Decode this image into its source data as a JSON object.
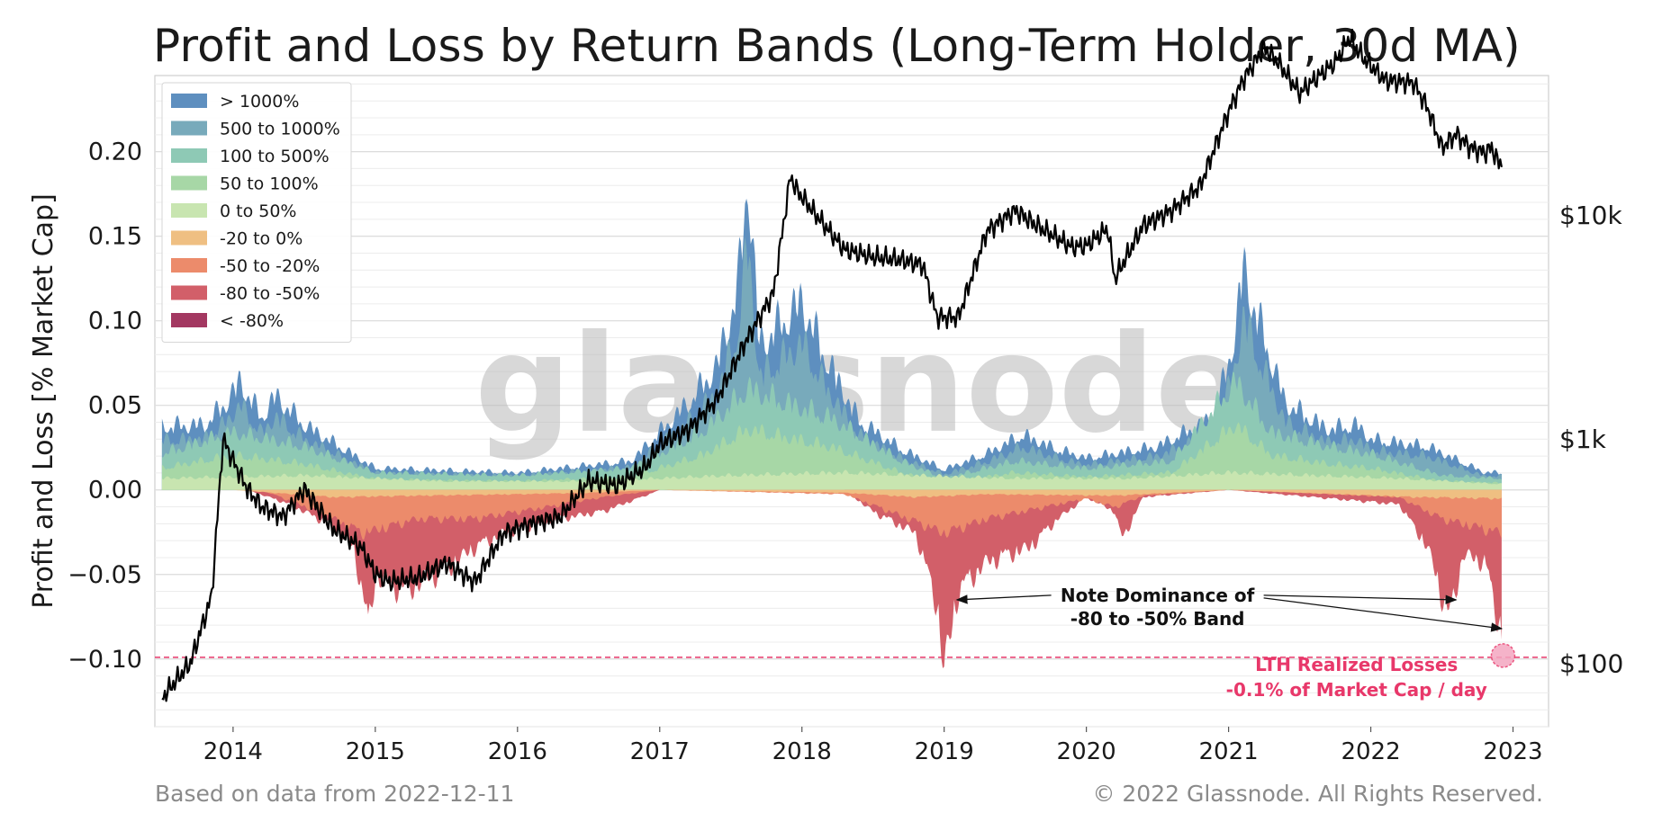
{
  "chart_data": {
    "type": "area",
    "title": "Profit and Loss by Return Bands (Long-Term Holder, 30d MA)",
    "ylabel": "Profit and Loss [% Market Cap]",
    "xlabel": "",
    "xlim": [
      2013.45,
      2023.25
    ],
    "ylim": [
      -0.14,
      0.245
    ],
    "x_ticks": [
      2014,
      2015,
      2016,
      2017,
      2018,
      2019,
      2020,
      2021,
      2022,
      2023
    ],
    "x_tick_labels": [
      "2014",
      "2015",
      "2016",
      "2017",
      "2018",
      "2019",
      "2020",
      "2021",
      "2022",
      "2023"
    ],
    "y_ticks": [
      -0.1,
      -0.05,
      0.0,
      0.05,
      0.1,
      0.15,
      0.2
    ],
    "y_tick_labels": [
      "−0.10",
      "−0.05",
      "0.00",
      "0.05",
      "0.10",
      "0.15",
      "0.20"
    ],
    "y2_ticks": [
      100,
      1000,
      10000
    ],
    "y2_tick_labels": [
      "$100",
      "$1k",
      "$10k"
    ],
    "y2_scale": "log",
    "y2lim": [
      52,
      42000
    ],
    "grid": true,
    "legend_position": "top-left",
    "legend": [
      {
        "label": "> 1000%",
        "color": "#5e8fbf"
      },
      {
        "label": "500 to 1000%",
        "color": "#78aabb"
      },
      {
        "label": "100 to 500%",
        "color": "#8ec9b5"
      },
      {
        "label": "50 to 100%",
        "color": "#a7d7a6"
      },
      {
        "label": "0 to 50%",
        "color": "#c8e5b0"
      },
      {
        "label": "-20 to 0%",
        "color": "#efbf82"
      },
      {
        "label": "-50 to -20%",
        "color": "#ec8b6b"
      },
      {
        "label": "-80 to -50%",
        "color": "#d25f69"
      },
      {
        "label": "< -80%",
        "color": "#a33861"
      }
    ],
    "series": [
      {
        "name": "> 1000%",
        "x": [
          2013.5,
          2013.8,
          2013.95,
          2014.05,
          2014.2,
          2014.3,
          2014.5,
          2015.0,
          2016.0,
          2016.8,
          2017.2,
          2017.4,
          2017.55,
          2017.62,
          2017.7,
          2017.9,
          2018.0,
          2018.15,
          2018.4,
          2018.7,
          2019.0,
          2019.3,
          2019.55,
          2019.8,
          2020.0,
          2020.5,
          2020.9,
          2021.05,
          2021.1,
          2021.2,
          2021.4,
          2021.7,
          2021.9,
          2022.0,
          2022.4,
          2022.8,
          2022.92
        ],
        "y": [
          0.044,
          0.045,
          0.06,
          0.075,
          0.05,
          0.065,
          0.045,
          0.015,
          0.012,
          0.02,
          0.06,
          0.085,
          0.14,
          0.22,
          0.1,
          0.12,
          0.13,
          0.095,
          0.048,
          0.028,
          0.014,
          0.025,
          0.038,
          0.028,
          0.022,
          0.03,
          0.05,
          0.11,
          0.155,
          0.12,
          0.06,
          0.042,
          0.045,
          0.035,
          0.03,
          0.012,
          0.012
        ]
      },
      {
        "name": "100 to 500%",
        "x": [
          2013.5,
          2014.0,
          2014.5,
          2015.0,
          2016.0,
          2016.8,
          2017.3,
          2017.62,
          2017.9,
          2018.2,
          2018.7,
          2019.0,
          2019.5,
          2020.0,
          2020.6,
          2021.05,
          2021.3,
          2021.7,
          2022.0,
          2022.5,
          2022.92
        ],
        "y": [
          0.025,
          0.04,
          0.03,
          0.012,
          0.01,
          0.015,
          0.04,
          0.07,
          0.06,
          0.05,
          0.02,
          0.008,
          0.02,
          0.015,
          0.02,
          0.075,
          0.04,
          0.03,
          0.025,
          0.01,
          0.008
        ]
      },
      {
        "name": "0 to 50%",
        "x": [
          2013.5,
          2014.5,
          2015.5,
          2016.5,
          2017.5,
          2018.3,
          2018.8,
          2019.5,
          2020.3,
          2021.0,
          2021.6,
          2022.2,
          2022.92
        ],
        "y": [
          0.008,
          0.01,
          0.006,
          0.006,
          0.01,
          0.012,
          0.01,
          0.008,
          0.008,
          0.012,
          0.01,
          0.008,
          0.004
        ]
      },
      {
        "name": "-20 to 0%",
        "x": [
          2013.5,
          2014.0,
          2014.7,
          2015.3,
          2016.0,
          2016.5,
          2017.0,
          2018.3,
          2018.8,
          2019.3,
          2020.2,
          2021.0,
          2022.3,
          2022.92
        ],
        "y": [
          0.0,
          0.0,
          -0.005,
          -0.004,
          -0.003,
          -0.002,
          0.0,
          -0.002,
          -0.005,
          -0.003,
          -0.004,
          0.0,
          -0.005,
          -0.006
        ]
      },
      {
        "name": "-50 to -20%",
        "x": [
          2013.5,
          2014.2,
          2014.6,
          2014.92,
          2015.3,
          2015.7,
          2016.2,
          2016.6,
          2017.0,
          2018.3,
          2018.75,
          2019.0,
          2019.3,
          2020.0,
          2020.2,
          2020.4,
          2021.0,
          2022.2,
          2022.5,
          2022.92
        ],
        "y": [
          0.0,
          0.0,
          -0.015,
          -0.03,
          -0.02,
          -0.02,
          -0.012,
          -0.005,
          0.0,
          -0.003,
          -0.02,
          -0.03,
          -0.02,
          -0.006,
          -0.012,
          -0.004,
          0.0,
          -0.005,
          -0.02,
          -0.03
        ]
      },
      {
        "name": "-80 to -50%",
        "x": [
          2013.5,
          2014.1,
          2014.4,
          2014.7,
          2014.85,
          2014.95,
          2015.0,
          2015.2,
          2015.5,
          2015.7,
          2015.9,
          2016.1,
          2016.3,
          2016.6,
          2016.9,
          2017.0,
          2018.3,
          2018.5,
          2018.6,
          2018.8,
          2018.95,
          2019.0,
          2019.1,
          2019.3,
          2019.6,
          2019.8,
          2020.0,
          2020.2,
          2020.25,
          2020.4,
          2021.0,
          2022.2,
          2022.4,
          2022.55,
          2022.65,
          2022.8,
          2022.92
        ],
        "y": [
          0.0,
          0.0,
          -0.01,
          -0.025,
          -0.04,
          -0.095,
          -0.06,
          -0.07,
          -0.055,
          -0.04,
          -0.03,
          -0.025,
          -0.02,
          -0.015,
          -0.004,
          0.0,
          0.0,
          -0.015,
          -0.02,
          -0.03,
          -0.08,
          -0.125,
          -0.07,
          -0.05,
          -0.04,
          -0.02,
          -0.005,
          -0.015,
          -0.035,
          -0.005,
          0.0,
          -0.01,
          -0.04,
          -0.09,
          -0.045,
          -0.05,
          -0.1
        ]
      },
      {
        "name": "Price",
        "x": [
          2013.5,
          2013.7,
          2013.85,
          2013.93,
          2014.0,
          2014.1,
          2014.2,
          2014.35,
          2014.5,
          2014.7,
          2014.9,
          2015.0,
          2015.1,
          2015.3,
          2015.5,
          2015.7,
          2015.9,
          2016.1,
          2016.3,
          2016.5,
          2016.7,
          2016.9,
          2017.0,
          2017.2,
          2017.4,
          2017.6,
          2017.8,
          2017.92,
          2017.96,
          2018.1,
          2018.3,
          2018.5,
          2018.7,
          2018.85,
          2018.95,
          2019.1,
          2019.3,
          2019.5,
          2019.65,
          2019.9,
          2020.0,
          2020.15,
          2020.2,
          2020.4,
          2020.6,
          2020.8,
          2020.95,
          2021.0,
          2021.1,
          2021.25,
          2021.35,
          2021.5,
          2021.6,
          2021.75,
          2021.85,
          2021.95,
          2022.1,
          2022.3,
          2022.4,
          2022.5,
          2022.6,
          2022.7,
          2022.8,
          2022.85,
          2022.9,
          2022.95
        ],
        "y": [
          70,
          100,
          200,
          1000,
          800,
          600,
          500,
          450,
          600,
          400,
          330,
          250,
          230,
          240,
          280,
          230,
          380,
          420,
          450,
          650,
          620,
          750,
          950,
          1100,
          1500,
          2700,
          4500,
          15000,
          13000,
          10000,
          7000,
          6500,
          6300,
          6000,
          3500,
          3500,
          8500,
          10500,
          9000,
          7200,
          7300,
          8700,
          5200,
          9000,
          10500,
          13500,
          24000,
          29000,
          40000,
          56000,
          48000,
          35000,
          40000,
          48000,
          62000,
          50000,
          40000,
          39000,
          30000,
          20000,
          23000,
          20000,
          19000,
          20000,
          17000,
          17200
        ]
      }
    ],
    "reference_line": {
      "y": -0.099,
      "color": "#e8386a",
      "style": "dashed"
    },
    "annotations": [
      {
        "text": "Note Dominance of",
        "x": 2020.5,
        "y": -0.066
      },
      {
        "text": "-80 to -50% Band",
        "x": 2020.5,
        "y": -0.08
      },
      {
        "text": "LTH Realized Losses",
        "x": 2021.9,
        "y": -0.107,
        "color": "#e8386a"
      },
      {
        "text": "-0.1% of Market Cap / day",
        "x": 2021.9,
        "y": -0.122,
        "color": "#e8386a"
      }
    ],
    "watermark": "glassnode"
  },
  "footer": {
    "left": "Based on data from 2022-12-11",
    "right": "© 2022 Glassnode. All Rights Reserved."
  }
}
